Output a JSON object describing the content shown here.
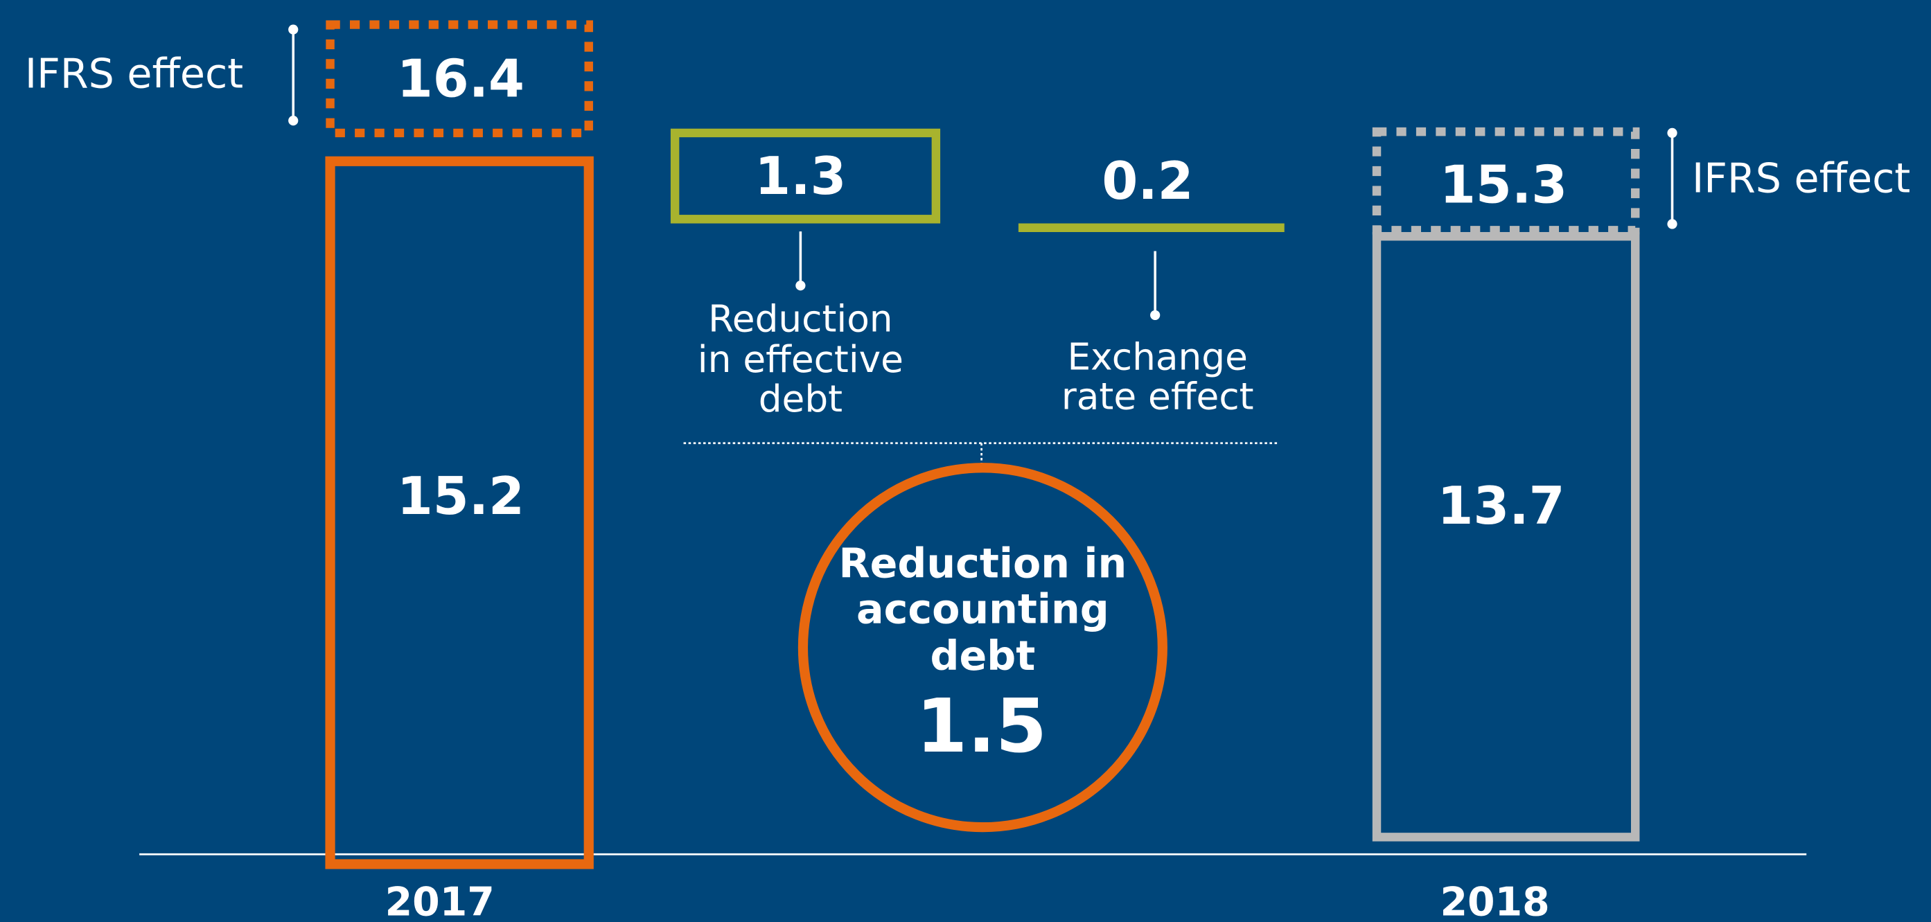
{
  "bars": [
    {
      "year": "2017",
      "base": 15.2,
      "ifrs_value": 16.4,
      "ifrs_label": "IFRS effect"
    },
    {
      "year": "2018",
      "base": 13.7,
      "ifrs_value": 15.3,
      "ifrs_label": "IFRS effect"
    }
  ],
  "effects": [
    {
      "value": 1.3,
      "label_lines": [
        "Reduction",
        "in effective",
        "debt"
      ]
    },
    {
      "value": 0.2,
      "label_lines": [
        "Exchange",
        "rate effect"
      ]
    }
  ],
  "total": {
    "label_lines": [
      "Reduction in",
      "accounting",
      "debt"
    ],
    "value": 1.5
  }
}
